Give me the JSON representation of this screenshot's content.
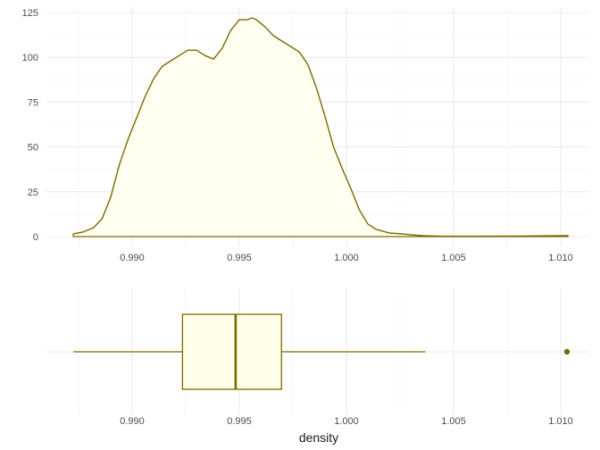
{
  "chart_data": [
    {
      "type": "area",
      "title": "",
      "xlabel": "",
      "ylabel": "",
      "xlim": [
        0.98725,
        1.01035
      ],
      "ylim": [
        0,
        125
      ],
      "x_ticks": [
        "0.990",
        "0.995",
        "1.000",
        "1.005",
        "1.010"
      ],
      "y_ticks": [
        "0",
        "25",
        "50",
        "75",
        "100",
        "125"
      ],
      "x_tick_values": [
        0.99,
        0.995,
        1.0,
        1.005,
        1.01
      ],
      "y_tick_values": [
        0,
        25,
        50,
        75,
        100,
        125
      ],
      "grid": true,
      "series": [
        {
          "x": [
            0.98725,
            0.9877,
            0.9882,
            0.9886,
            0.989,
            0.9894,
            0.9898,
            0.9902,
            0.9906,
            0.991,
            0.9914,
            0.9918,
            0.9922,
            0.9926,
            0.993,
            0.9934,
            0.9938,
            0.9942,
            0.9946,
            0.995,
            0.9954,
            0.9956,
            0.9958,
            0.9962,
            0.9966,
            0.997,
            0.9974,
            0.9978,
            0.9982,
            0.9986,
            0.999,
            0.9994,
            0.9998,
            1.0002,
            1.0006,
            1.001,
            1.0014,
            1.002,
            1.0026,
            1.003,
            1.0036,
            1.0044,
            1.006,
            1.008,
            1.01,
            1.01035
          ],
          "y": [
            1.5,
            2.5,
            5,
            10,
            22,
            40,
            54,
            66,
            78,
            88,
            95,
            98,
            101,
            104,
            104,
            101,
            99,
            105,
            115,
            121,
            121,
            122,
            121,
            117,
            112,
            109,
            106,
            103,
            96,
            83,
            67,
            50,
            38,
            27,
            15,
            7,
            4,
            2,
            1.5,
            1,
            0.5,
            0.2,
            0.2,
            0.3,
            0.5,
            0.6
          ]
        }
      ],
      "line_color": "#7a6a00",
      "fill_color": "#fffef0"
    },
    {
      "type": "box",
      "title": "",
      "xlabel": "density",
      "ylabel": "",
      "xlim": [
        0.98725,
        1.01035
      ],
      "x_ticks": [
        "0.990",
        "0.995",
        "1.000",
        "1.005",
        "1.010"
      ],
      "x_tick_values": [
        0.99,
        0.995,
        1.0,
        1.005,
        1.01
      ],
      "grid": true,
      "whisker_low": 0.98725,
      "q1": 0.99235,
      "median": 0.99483,
      "q3": 0.99697,
      "whisker_high": 1.00369,
      "outliers": [
        1.01029
      ],
      "line_color": "#7a6a00",
      "fill_color": "#ffffea"
    }
  ]
}
